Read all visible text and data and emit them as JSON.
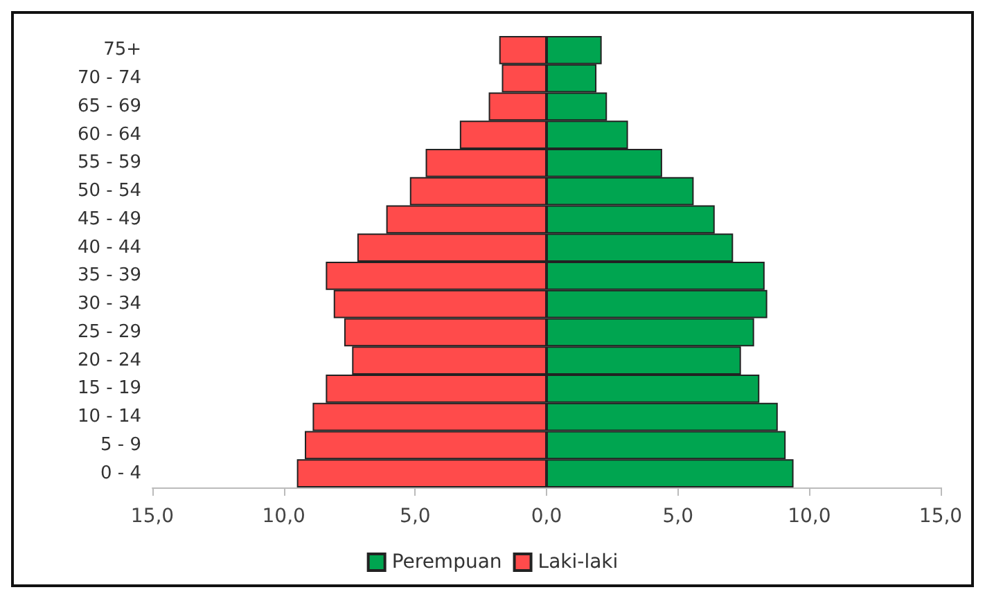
{
  "chart_data": {
    "type": "bar",
    "orientation": "horizontal",
    "categories": [
      "75+",
      "70 - 74",
      "65 - 69",
      "60 - 64",
      "55 - 59",
      "50 - 54",
      "45 - 49",
      "40 - 44",
      "35 - 39",
      "30 - 34",
      "25 - 29",
      "20 - 24",
      "15 - 19",
      "10 - 14",
      "5 - 9",
      "0 - 4"
    ],
    "series": [
      {
        "name": "Perempuan",
        "color": "#00a550",
        "values": [
          2.1,
          1.9,
          2.3,
          3.1,
          4.4,
          5.6,
          6.4,
          7.1,
          8.3,
          8.4,
          7.9,
          7.4,
          8.1,
          8.8,
          9.1,
          9.4
        ]
      },
      {
        "name": "Laki-laki",
        "color": "#ff4b4b",
        "values": [
          -1.8,
          -1.7,
          -2.2,
          -3.3,
          -4.6,
          -5.2,
          -6.1,
          -7.2,
          -8.4,
          -8.1,
          -7.7,
          -7.4,
          -8.4,
          -8.9,
          -9.2,
          -9.5
        ]
      }
    ],
    "xlim": [
      -15,
      15
    ],
    "xticks": [
      {
        "value": -15,
        "label": "15,0"
      },
      {
        "value": -10,
        "label": "10,0"
      },
      {
        "value": -5,
        "label": "5,0"
      },
      {
        "value": 0,
        "label": "0,0"
      },
      {
        "value": 5,
        "label": "5,0"
      },
      {
        "value": 10,
        "label": "10,0"
      },
      {
        "value": 15,
        "label": "15,0"
      }
    ],
    "stacked": true,
    "grid": false,
    "legend": "bottom"
  }
}
